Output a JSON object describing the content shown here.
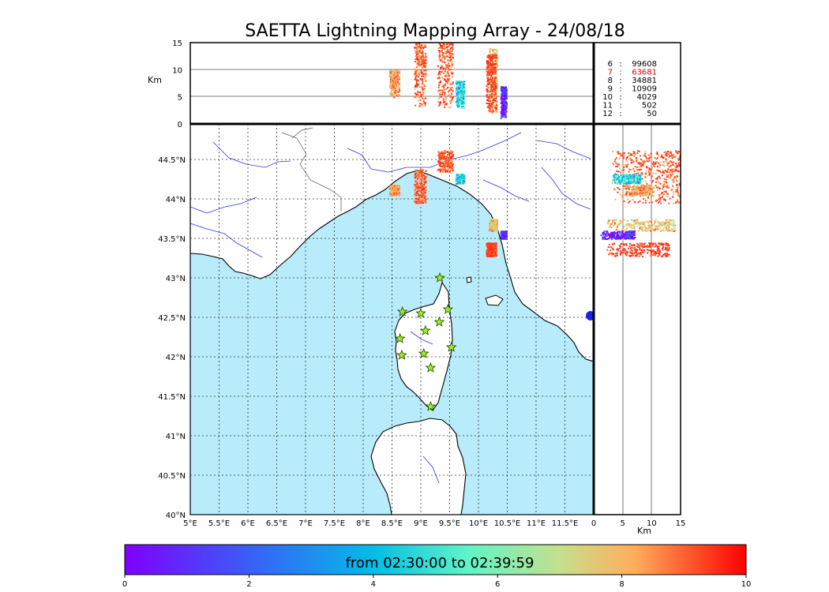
{
  "chart_data": {
    "type": "scatter",
    "title": "SAETTA Lightning Mapping Array - 24/08/18",
    "map": {
      "lon_range": [
        5,
        12
      ],
      "lat_range": [
        40,
        44.95
      ],
      "lon_ticks": [
        "5°E",
        "5.5°E",
        "6°E",
        "6.5°E",
        "7°E",
        "7.5°E",
        "8°E",
        "8.5°E",
        "9°E",
        "9.5°E",
        "10°E",
        "10.5°E",
        "11°E",
        "11.5°E"
      ],
      "lat_ticks": [
        "40°N",
        "40.5°N",
        "41°N",
        "41.5°N",
        "42°N",
        "42.5°N",
        "43°N",
        "43.5°N",
        "44°N",
        "44.5°N"
      ],
      "grid": true,
      "sea_color": "#b8ecfa",
      "land_color": "#ffffff",
      "river_color": "#3030ff"
    },
    "altitude_panel": {
      "ylabel": "Km",
      "yticks": [
        "0",
        "5",
        "10",
        "15"
      ],
      "ylim": [
        0,
        15
      ]
    },
    "side_panel": {
      "xlabel": "Km",
      "xticks": [
        "0",
        "5",
        "10",
        "15"
      ],
      "xlim": [
        0,
        15
      ]
    },
    "station_counts": [
      {
        "stations": "6",
        "count": "99608",
        "highlight": false
      },
      {
        "stations": "7",
        "count": "63681",
        "highlight": true
      },
      {
        "stations": "8",
        "count": "34881",
        "highlight": false
      },
      {
        "stations": "9",
        "count": "10909",
        "highlight": false
      },
      {
        "stations": "10",
        "count": "4029",
        "highlight": false
      },
      {
        "stations": "11",
        "count": "502",
        "highlight": false
      },
      {
        "stations": "12",
        "count": "50",
        "highlight": false
      }
    ],
    "stations": [
      {
        "lon": 9.33,
        "lat": 43.0
      },
      {
        "lon": 8.68,
        "lat": 42.57
      },
      {
        "lon": 9.0,
        "lat": 42.55
      },
      {
        "lon": 9.47,
        "lat": 42.6
      },
      {
        "lon": 9.32,
        "lat": 42.44
      },
      {
        "lon": 9.08,
        "lat": 42.33
      },
      {
        "lon": 8.64,
        "lat": 42.23
      },
      {
        "lon": 9.53,
        "lat": 42.12
      },
      {
        "lon": 8.67,
        "lat": 42.02
      },
      {
        "lon": 9.05,
        "lat": 42.04
      },
      {
        "lon": 9.17,
        "lat": 41.86
      },
      {
        "lon": 9.17,
        "lat": 41.37
      }
    ],
    "lightning_clusters": [
      {
        "lon": [
          8.88,
          9.08
        ],
        "lat": [
          43.95,
          44.38
        ],
        "alt": [
          3,
          15
        ],
        "time": 8.5
      },
      {
        "lon": [
          9.28,
          9.55
        ],
        "lat": [
          44.35,
          44.62
        ],
        "alt": [
          3,
          15
        ],
        "time": 8.8
      },
      {
        "lon": [
          8.45,
          8.62
        ],
        "lat": [
          44.05,
          44.18
        ],
        "alt": [
          5,
          10
        ],
        "time": 7.5
      },
      {
        "lon": [
          9.6,
          9.75
        ],
        "lat": [
          44.2,
          44.32
        ],
        "alt": [
          3,
          8
        ],
        "time": 3.5
      },
      {
        "lon": [
          10.18,
          10.32
        ],
        "lat": [
          43.6,
          43.75
        ],
        "alt": [
          2,
          14
        ],
        "time": 6.5
      },
      {
        "lon": [
          10.13,
          10.3
        ],
        "lat": [
          43.28,
          43.45
        ],
        "alt": [
          2,
          13
        ],
        "time": 9.5
      },
      {
        "lon": [
          10.38,
          10.48
        ],
        "lat": [
          43.5,
          43.6
        ],
        "alt": [
          1,
          7
        ],
        "time": 0.5
      }
    ],
    "colorbar": {
      "label": "from 02:30:00 to 02:39:59",
      "ticks": [
        "0",
        "2",
        "4",
        "6",
        "8",
        "10"
      ],
      "range": [
        0,
        10
      ],
      "cmap": "rainbow"
    }
  }
}
